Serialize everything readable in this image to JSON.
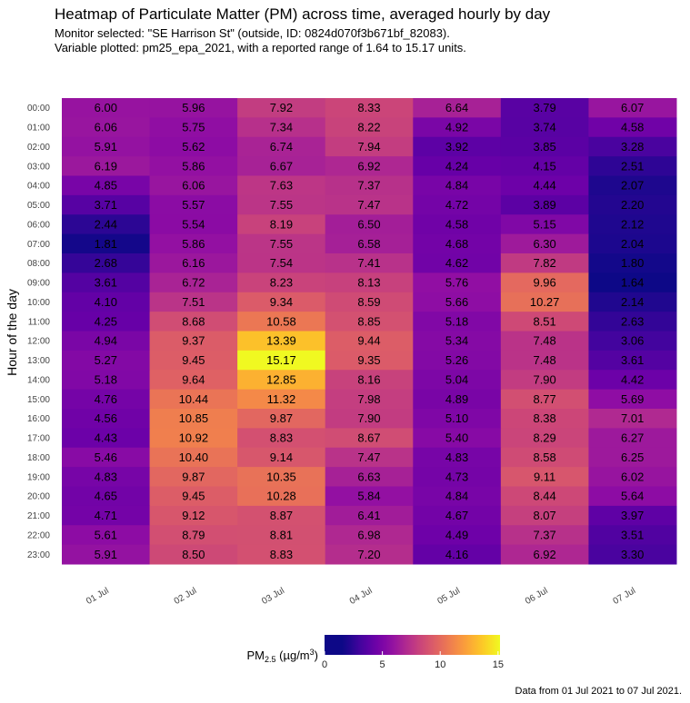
{
  "chart_data": {
    "type": "heatmap",
    "title": "Heatmap of Particulate Matter (PM) across time, averaged hourly by day",
    "subtitle_lines": [
      "Monitor selected: \"SE Harrison St\" (outside, ID: 0824d070f3b671bf_82083).",
      "Variable plotted: pm25_epa_2021, with a reported range of 1.64 to 15.17 units."
    ],
    "ylabel": "Hour of the day",
    "xlabel": "",
    "caption": "Data from 01 Jul 2021 to 07 Jul 2021.",
    "x_categories": [
      "01 Jul",
      "02 Jul",
      "03 Jul",
      "04 Jul",
      "05 Jul",
      "06 Jul",
      "07 Jul"
    ],
    "y_categories": [
      "00:00",
      "01:00",
      "02:00",
      "03:00",
      "04:00",
      "05:00",
      "06:00",
      "07:00",
      "08:00",
      "09:00",
      "10:00",
      "11:00",
      "12:00",
      "13:00",
      "14:00",
      "15:00",
      "16:00",
      "17:00",
      "18:00",
      "19:00",
      "20:00",
      "21:00",
      "22:00",
      "23:00"
    ],
    "values": [
      [
        6.0,
        5.96,
        7.92,
        8.33,
        6.64,
        3.79,
        6.07
      ],
      [
        6.06,
        5.75,
        7.34,
        8.22,
        4.92,
        3.74,
        4.58
      ],
      [
        5.91,
        5.62,
        6.74,
        7.94,
        3.92,
        3.85,
        3.28
      ],
      [
        6.19,
        5.86,
        6.67,
        6.92,
        4.24,
        4.15,
        2.51
      ],
      [
        4.85,
        6.06,
        7.63,
        7.37,
        4.84,
        4.44,
        2.07
      ],
      [
        3.71,
        5.57,
        7.55,
        7.47,
        4.72,
        3.89,
        2.2
      ],
      [
        2.44,
        5.54,
        8.19,
        6.5,
        4.58,
        5.15,
        2.12
      ],
      [
        1.81,
        5.86,
        7.55,
        6.58,
        4.68,
        6.3,
        2.04
      ],
      [
        2.68,
        6.16,
        7.54,
        7.41,
        4.62,
        7.82,
        1.8
      ],
      [
        3.61,
        6.72,
        8.23,
        8.13,
        5.76,
        9.96,
        1.64
      ],
      [
        4.1,
        7.51,
        9.34,
        8.59,
        5.66,
        10.27,
        2.14
      ],
      [
        4.25,
        8.68,
        10.58,
        8.85,
        5.18,
        8.51,
        2.63
      ],
      [
        4.94,
        9.37,
        13.39,
        9.44,
        5.34,
        7.48,
        3.06
      ],
      [
        5.27,
        9.45,
        15.17,
        9.35,
        5.26,
        7.48,
        3.61
      ],
      [
        5.18,
        9.64,
        12.85,
        8.16,
        5.04,
        7.9,
        4.42
      ],
      [
        4.76,
        10.44,
        11.32,
        7.98,
        4.89,
        8.77,
        5.69
      ],
      [
        4.56,
        10.85,
        9.87,
        7.9,
        5.1,
        8.38,
        7.01
      ],
      [
        4.43,
        10.92,
        8.83,
        8.67,
        5.4,
        8.29,
        6.27
      ],
      [
        5.46,
        10.4,
        9.14,
        7.47,
        4.83,
        8.58,
        6.25
      ],
      [
        4.83,
        9.87,
        10.35,
        6.63,
        4.73,
        9.11,
        6.02
      ],
      [
        4.65,
        9.45,
        10.28,
        5.84,
        4.84,
        8.44,
        5.64
      ],
      [
        4.71,
        9.12,
        8.87,
        6.41,
        4.67,
        8.07,
        3.97
      ],
      [
        5.61,
        8.79,
        8.81,
        6.98,
        4.49,
        7.37,
        3.51
      ],
      [
        5.91,
        8.5,
        8.83,
        7.2,
        4.16,
        6.92,
        3.3
      ]
    ],
    "value_labels": [
      [
        "6.00",
        "5.96",
        "7.92",
        "8.33",
        "6.64",
        "3.79",
        "6.07"
      ],
      [
        "6.06",
        "5.75",
        "7.34",
        "8.22",
        "4.92",
        "3.74",
        "4.58"
      ],
      [
        "5.91",
        "5.62",
        "6.74",
        "7.94",
        "3.92",
        "3.85",
        "3.28"
      ],
      [
        "6.19",
        "5.86",
        "6.67",
        "6.92",
        "4.24",
        "4.15",
        "2.51"
      ],
      [
        "4.85",
        "6.06",
        "7.63",
        "7.37",
        "4.84",
        "4.44",
        "2.07"
      ],
      [
        "3.71",
        "5.57",
        "7.55",
        "7.47",
        "4.72",
        "3.89",
        "2.20"
      ],
      [
        "2.44",
        "5.54",
        "8.19",
        "6.50",
        "4.58",
        "5.15",
        "2.12"
      ],
      [
        "1.81",
        "5.86",
        "7.55",
        "6.58",
        "4.68",
        "6.30",
        "2.04"
      ],
      [
        "2.68",
        "6.16",
        "7.54",
        "7.41",
        "4.62",
        "7.82",
        "1.80"
      ],
      [
        "3.61",
        "6.72",
        "8.23",
        "8.13",
        "5.76",
        "9.96",
        "1.64"
      ],
      [
        "4.10",
        "7.51",
        "9.34",
        "8.59",
        "5.66",
        "10.27",
        "2.14"
      ],
      [
        "4.25",
        "8.68",
        "10.58",
        "8.85",
        "5.18",
        "8.51",
        "2.63"
      ],
      [
        "4.94",
        "9.37",
        "13.39",
        "9.44",
        "5.34",
        "7.48",
        "3.06"
      ],
      [
        "5.27",
        "9.45",
        "15.17",
        "9.35",
        "5.26",
        "7.48",
        "3.61"
      ],
      [
        "5.18",
        "9.64",
        "12.85",
        "8.16",
        "5.04",
        "7.90",
        "4.42"
      ],
      [
        "4.76",
        "10.44",
        "11.32",
        "7.98",
        "4.89",
        "8.77",
        "5.69"
      ],
      [
        "4.56",
        "10.85",
        "9.87",
        "7.90",
        "5.10",
        "8.38",
        "7.01"
      ],
      [
        "4.43",
        "10.92",
        "8.83",
        "8.67",
        "5.40",
        "8.29",
        "6.27"
      ],
      [
        "5.46",
        "10.40",
        "9.14",
        "7.47",
        "4.83",
        "8.58",
        "6.25"
      ],
      [
        "4.83",
        "9.87",
        "10.35",
        "6.63",
        "4.73",
        "9.11",
        "6.02"
      ],
      [
        "4.65",
        "9.45",
        "10.28",
        "5.84",
        "4.84",
        "8.44",
        "5.64"
      ],
      [
        "4.71",
        "9.12",
        "8.87",
        "6.41",
        "4.67",
        "8.07",
        "3.97"
      ],
      [
        "5.61",
        "8.79",
        "8.81",
        "6.98",
        "4.49",
        "7.37",
        "3.51"
      ],
      [
        "5.91",
        "8.50",
        "8.83",
        "7.20",
        "4.16",
        "6.92",
        "3.30"
      ]
    ],
    "colorscale": "plasma",
    "color_range": [
      1.64,
      15.17
    ],
    "legend": {
      "title_main": "PM",
      "title_sub": "2.5",
      "title_unit_prefix": " (µg/m",
      "title_unit_sup": "3",
      "title_unit_suffix": ")",
      "ticks": [
        0,
        5,
        10,
        15
      ],
      "range": [
        0,
        15.17
      ],
      "placement": "bottom"
    },
    "grid": false
  }
}
